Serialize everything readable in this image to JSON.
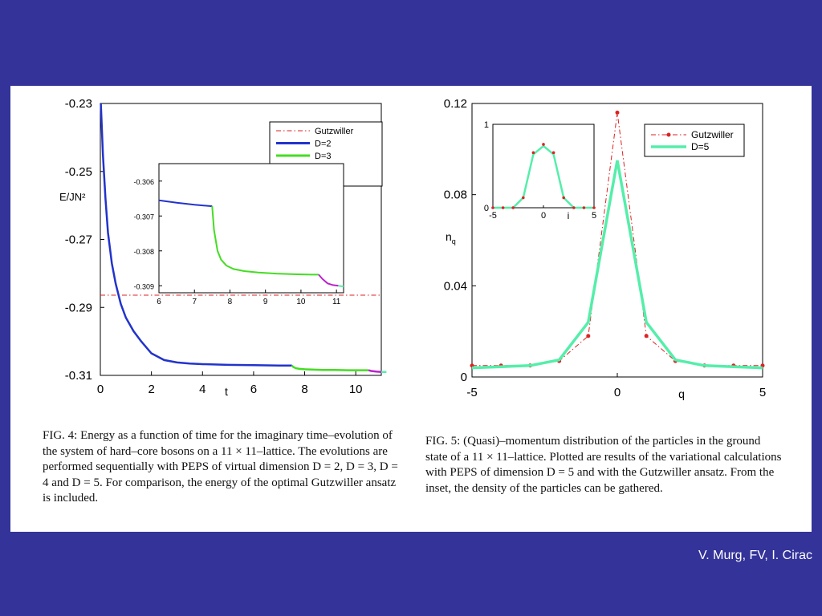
{
  "credit": "V. Murg, FV, I. Cirac",
  "colors": {
    "background": "#333399",
    "gutzwiller": "#dd2222",
    "D2": "#2233cc",
    "D3": "#44dd22",
    "D4": "#bb22cc",
    "D5": "#55eeaa"
  },
  "captions": {
    "fig4": "FIG. 4: Energy as a function of time for the imaginary time–evolution of the system of hard–core bosons on a 11 × 11–lattice. The evolutions are performed sequentially with PEPS of virtual dimension D = 2, D = 3, D = 4 and D = 5. For comparison, the energy of the optimal Gutzwiller ansatz is included.",
    "fig5": "FIG. 5: (Quasi)–momentum distribution of the particles in the ground state of a 11 × 11–lattice. Plotted are results of the variational calculations with PEPS of dimension D = 5 and with the Gutzwiller ansatz. From the inset, the density of the particles can be gathered."
  },
  "chart_data": [
    {
      "type": "line",
      "xlabel": "t",
      "ylabel": "E/JN²",
      "xlim": [
        0,
        11
      ],
      "ylim": [
        -0.31,
        -0.23
      ],
      "xticks": [
        "0",
        "2",
        "4",
        "6",
        "8",
        "10"
      ],
      "yticks": [
        "-0.23",
        "-0.25",
        "-0.27",
        "-0.29",
        "-0.31"
      ],
      "legend_position": "top-right",
      "series": [
        {
          "name": "Gutzwiller",
          "style": "dashdot",
          "colorKey": "gutzwiller",
          "x": [
            0,
            11
          ],
          "y": [
            -0.2864,
            -0.2864
          ]
        },
        {
          "name": "D=2",
          "colorKey": "D2",
          "x": [
            0.02,
            0.1,
            0.2,
            0.3,
            0.45,
            0.6,
            0.8,
            1.0,
            1.3,
            1.6,
            2.0,
            2.5,
            3.0,
            3.5,
            4.0,
            5.0,
            6.0,
            7.0,
            7.5
          ],
          "y": [
            -0.23,
            -0.245,
            -0.258,
            -0.268,
            -0.277,
            -0.283,
            -0.289,
            -0.293,
            -0.297,
            -0.3,
            -0.3035,
            -0.3055,
            -0.3062,
            -0.3065,
            -0.3067,
            -0.3069,
            -0.307,
            -0.3071,
            -0.3071
          ]
        },
        {
          "name": "D=3",
          "colorKey": "D3",
          "x": [
            7.5,
            7.55,
            7.65,
            7.8,
            8.0,
            8.3,
            8.7,
            9.2,
            9.7,
            10.2,
            10.5
          ],
          "y": [
            -0.3071,
            -0.3075,
            -0.3079,
            -0.3081,
            -0.3082,
            -0.3083,
            -0.3084,
            -0.3084,
            -0.3085,
            -0.3085,
            -0.3085
          ]
        },
        {
          "name": "D=4",
          "colorKey": "D4",
          "x": [
            10.5,
            10.6,
            10.8,
            11.0
          ],
          "y": [
            -0.3085,
            -0.3087,
            -0.3089,
            -0.309
          ]
        },
        {
          "name": "D=5",
          "colorKey": "D5",
          "x": [
            11.0,
            11.2
          ],
          "y": [
            -0.309,
            -0.309
          ]
        }
      ],
      "inset": {
        "xlim": [
          6,
          11.2
        ],
        "ylim": [
          -0.3092,
          -0.3055
        ],
        "xticks": [
          "6",
          "7",
          "8",
          "9",
          "10",
          "11"
        ],
        "yticks": [
          "-0.306",
          "-0.307",
          "-0.308",
          "-0.309"
        ],
        "series": [
          {
            "colorKey": "D2",
            "x": [
              6.0,
              6.5,
              7.0,
              7.5
            ],
            "y": [
              -0.30655,
              -0.30662,
              -0.30668,
              -0.30672
            ]
          },
          {
            "colorKey": "D3",
            "x": [
              7.5,
              7.55,
              7.65,
              7.75,
              7.9,
              8.1,
              8.4,
              8.8,
              9.3,
              9.8,
              10.3,
              10.5
            ],
            "y": [
              -0.30672,
              -0.3074,
              -0.308,
              -0.30825,
              -0.30842,
              -0.30852,
              -0.30858,
              -0.30862,
              -0.30865,
              -0.30867,
              -0.30868,
              -0.30868
            ]
          },
          {
            "colorKey": "D4",
            "x": [
              10.5,
              10.6,
              10.75,
              10.9,
              11.05
            ],
            "y": [
              -0.30868,
              -0.3088,
              -0.30893,
              -0.30898,
              -0.309
            ]
          },
          {
            "colorKey": "D5",
            "x": [
              11.05,
              11.2
            ],
            "y": [
              -0.309,
              -0.30902
            ]
          }
        ]
      }
    },
    {
      "type": "line",
      "xlabel": "q",
      "ylabel": "n_q",
      "xlim": [
        -5,
        5
      ],
      "ylim": [
        0,
        0.12
      ],
      "xticks": [
        "-5",
        "0",
        "5"
      ],
      "yticks": [
        "0",
        "0.04",
        "0.08",
        "0.12"
      ],
      "legend_position": "top-right",
      "series": [
        {
          "name": "Gutzwiller",
          "style": "dashdot-markers",
          "colorKey": "gutzwiller",
          "x": [
            -5,
            -4,
            -3,
            -2,
            -1,
            0,
            1,
            2,
            3,
            4,
            5
          ],
          "y": [
            0.005,
            0.005,
            0.005,
            0.007,
            0.018,
            0.116,
            0.018,
            0.007,
            0.005,
            0.005,
            0.005
          ]
        },
        {
          "name": "D=5",
          "colorKey": "D5",
          "x": [
            -5,
            -4,
            -3,
            -2,
            -1,
            0,
            1,
            2,
            3,
            4,
            5
          ],
          "y": [
            0.004,
            0.0045,
            0.005,
            0.0075,
            0.024,
            0.095,
            0.024,
            0.0075,
            0.005,
            0.0045,
            0.004
          ]
        }
      ],
      "inset": {
        "xlabel": "i",
        "xlim": [
          -5,
          5
        ],
        "ylim": [
          0,
          1
        ],
        "xticks": [
          "-5",
          "0",
          "5"
        ],
        "yticks": [
          "0",
          "1"
        ],
        "series": [
          {
            "colorKey": "D5",
            "x": [
              -5,
              -4,
              -3,
              -2,
              -1,
              0,
              1,
              2,
              3,
              4,
              5
            ],
            "y": [
              0,
              0,
              0,
              0.12,
              0.64,
              0.74,
              0.64,
              0.12,
              0,
              0,
              0
            ]
          },
          {
            "colorKey": "gutzwiller",
            "style": "markers",
            "x": [
              -5,
              -4,
              -3,
              -2,
              -1,
              0,
              1,
              2,
              3,
              4,
              5
            ],
            "y": [
              0,
              0,
              0,
              0.12,
              0.66,
              0.76,
              0.66,
              0.12,
              0,
              0,
              0
            ]
          }
        ]
      }
    }
  ]
}
